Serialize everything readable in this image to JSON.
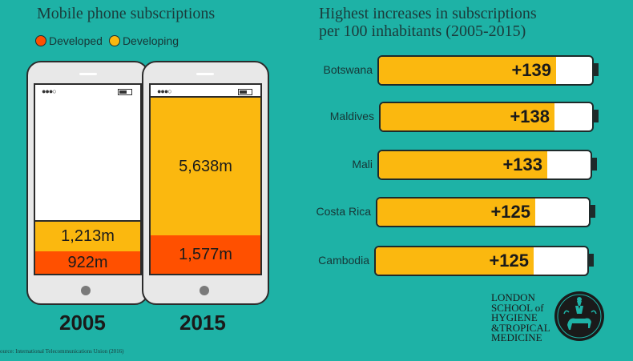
{
  "left_chart": {
    "title": "Mobile phone subscriptions",
    "legend": [
      {
        "label": "Developed",
        "color": "#ff5000"
      },
      {
        "label": "Developing",
        "color": "#fbb80f"
      }
    ]
  },
  "right_chart": {
    "title_line1": "Highest increases in subscriptions",
    "title_line2": "per 100 inhabitants (2005-2015)"
  },
  "chart_data": [
    {
      "type": "bar",
      "title": "Mobile phone subscriptions",
      "categories": [
        "2005",
        "2015"
      ],
      "series": [
        {
          "name": "Developed",
          "values": [
            922,
            1577
          ],
          "labels": [
            "922m",
            "1,577m"
          ],
          "color": "#ff5000"
        },
        {
          "name": "Developing",
          "values": [
            1213,
            5638
          ],
          "labels": [
            "1,213m",
            "5,638m"
          ],
          "color": "#fbb80f"
        }
      ],
      "stacked": true,
      "ylim": [
        0,
        7215
      ]
    },
    {
      "type": "bar",
      "title": "Highest increases in subscriptions per 100 inhabitants (2005-2015)",
      "orientation": "horizontal",
      "categories": [
        "Botswana",
        "Maldives",
        "Mali",
        "Costa Rica",
        "Cambodia"
      ],
      "values": [
        139,
        138,
        133,
        125,
        125
      ],
      "labels": [
        "+139",
        "+138",
        "+133",
        "+125",
        "+125"
      ],
      "color": "#fbb80f",
      "xlim": [
        0,
        165
      ]
    }
  ],
  "footer": {
    "source": "ource: International Telecommunications Union (2016)",
    "logo_lines": [
      "LONDON",
      "SCHOOL of",
      "HYGIENE",
      "&TROPICAL",
      "MEDICINE"
    ]
  }
}
